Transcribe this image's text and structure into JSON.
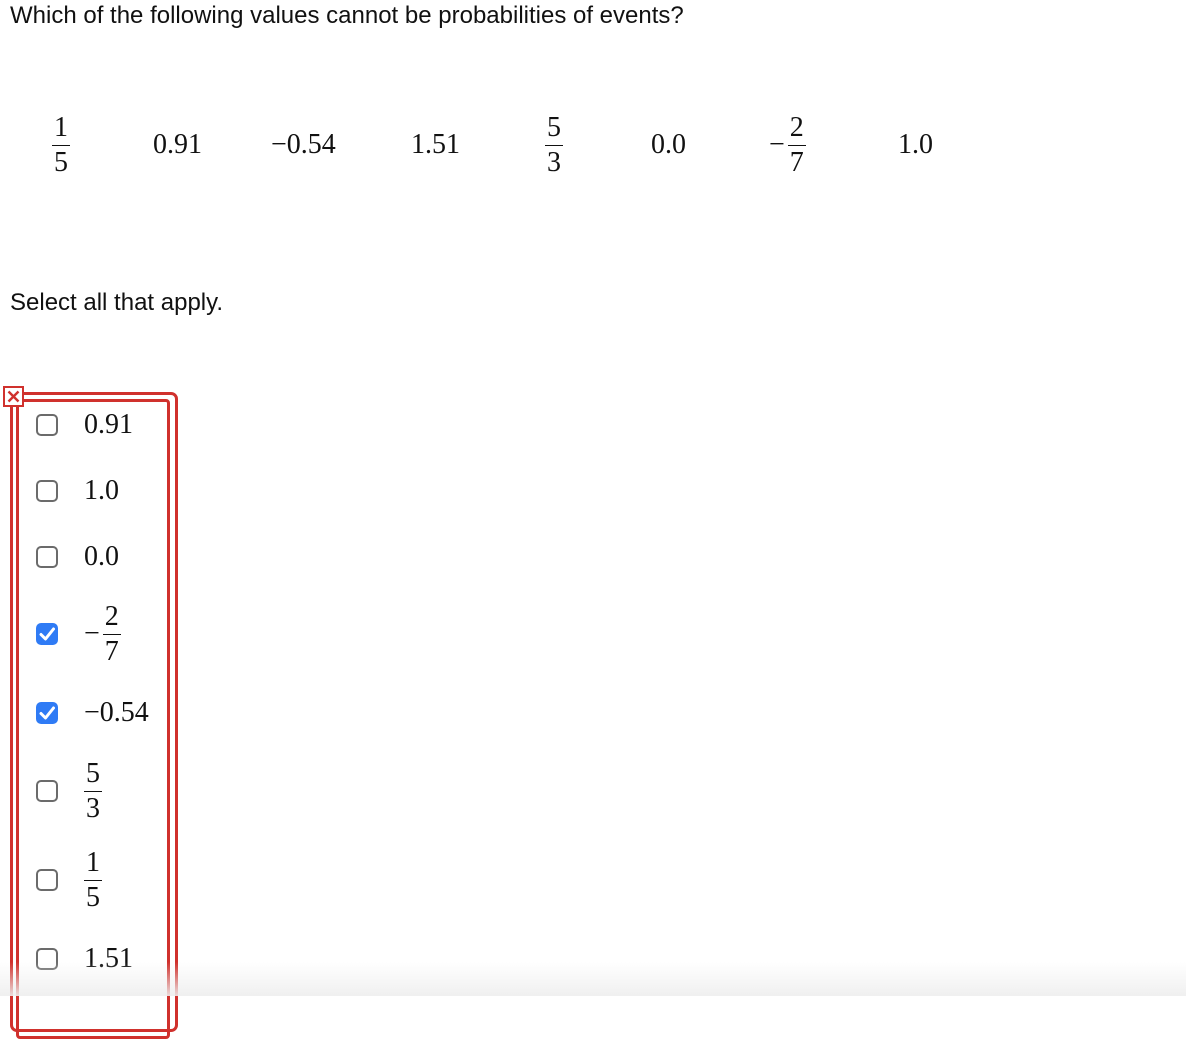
{
  "question": {
    "text": "Which of the following values cannot be probabilities of events?"
  },
  "values": [
    {
      "type": "frac",
      "num": "1",
      "den": "5",
      "neg": false
    },
    {
      "type": "text",
      "text": "0.91"
    },
    {
      "type": "text",
      "text": "−0.54"
    },
    {
      "type": "text",
      "text": "1.51"
    },
    {
      "type": "frac",
      "num": "5",
      "den": "3",
      "neg": false
    },
    {
      "type": "text",
      "text": "0.0"
    },
    {
      "type": "frac",
      "num": "2",
      "den": "7",
      "neg": true,
      "sign": "−"
    },
    {
      "type": "text",
      "text": "1.0"
    }
  ],
  "instruction": {
    "text": "Select all that apply."
  },
  "status": {
    "error_icon": "close-icon",
    "error_color": "#d0312d"
  },
  "options": [
    {
      "kind": "text",
      "text": "0.91",
      "checked": false
    },
    {
      "kind": "text",
      "text": "1.0",
      "checked": false
    },
    {
      "kind": "text",
      "text": "0.0",
      "checked": false
    },
    {
      "kind": "frac",
      "sign": "−",
      "num": "2",
      "den": "7",
      "checked": true
    },
    {
      "kind": "text",
      "text": "−0.54",
      "checked": true
    },
    {
      "kind": "frac",
      "sign": "",
      "num": "5",
      "den": "3",
      "checked": false
    },
    {
      "kind": "frac",
      "sign": "",
      "num": "1",
      "den": "5",
      "checked": false
    },
    {
      "kind": "text",
      "text": "1.51",
      "checked": false
    }
  ],
  "colors": {
    "checkbox_checked": "#2f7bf5",
    "checkbox_border": "#6b6b6b"
  }
}
